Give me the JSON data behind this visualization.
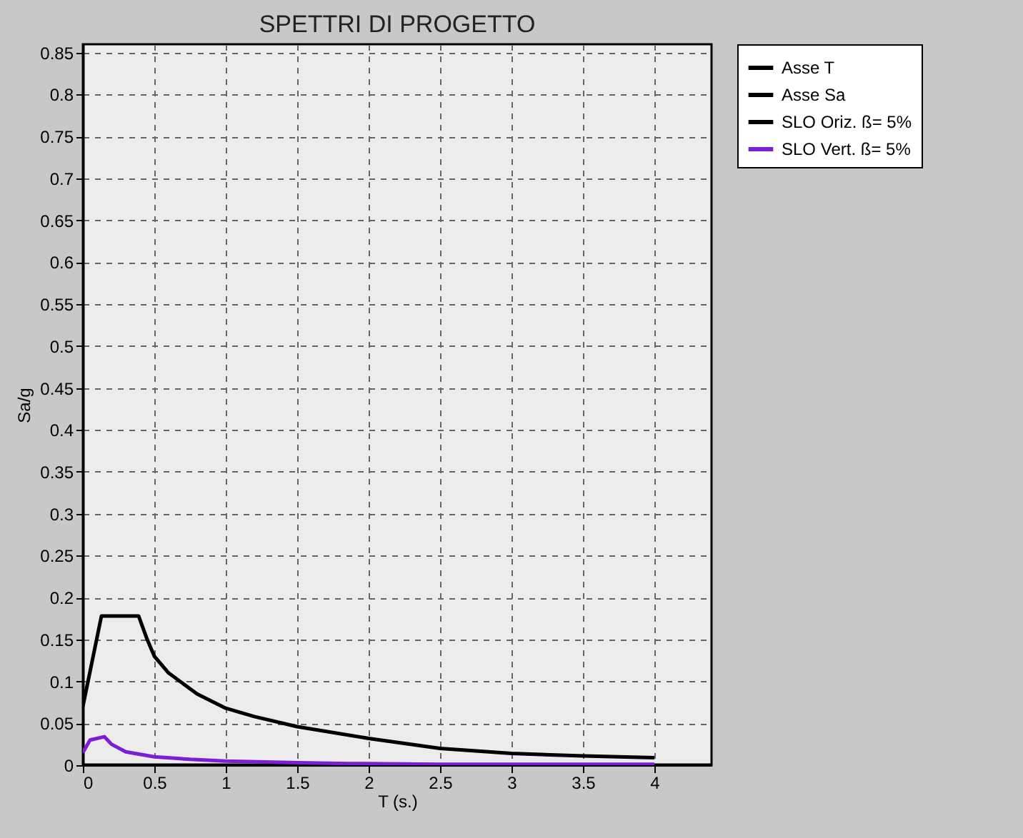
{
  "chart_data": {
    "type": "line",
    "title": "SPETTRI DI PROGETTO",
    "xlabel": "T (s.)",
    "ylabel": "Sa/g",
    "xlim": [
      0,
      4.4
    ],
    "ylim": [
      0,
      0.86
    ],
    "xticks": [
      0,
      0.5,
      1,
      1.5,
      2,
      2.5,
      3,
      3.5,
      4
    ],
    "yticks": [
      0,
      0.05,
      0.1,
      0.15,
      0.2,
      0.25,
      0.3,
      0.35,
      0.4,
      0.45,
      0.5,
      0.55,
      0.6,
      0.65,
      0.7,
      0.75,
      0.8,
      0.85
    ],
    "grid": true,
    "legend": "top right",
    "line_style": "solid",
    "marker": "none",
    "series": [
      {
        "name": "Asse T",
        "color": "#000000",
        "x": [
          0,
          4.4
        ],
        "values": [
          0,
          0
        ]
      },
      {
        "name": "Asse Sa",
        "color": "#000000",
        "x": [
          0,
          0
        ],
        "values": [
          0,
          0.86
        ]
      },
      {
        "name": "SLO Oriz. ß= 5%",
        "color": "#000000",
        "x": [
          0,
          0.13,
          0.39,
          0.45,
          0.5,
          0.6,
          0.8,
          1.0,
          1.2,
          1.5,
          2.0,
          2.5,
          3.0,
          3.5,
          4.0
        ],
        "values": [
          0.07,
          0.178,
          0.178,
          0.15,
          0.13,
          0.11,
          0.085,
          0.068,
          0.058,
          0.046,
          0.032,
          0.02,
          0.014,
          0.011,
          0.009
        ]
      },
      {
        "name": "SLO Vert. ß= 5%",
        "color": "#7b1fd6",
        "x": [
          0,
          0.05,
          0.15,
          0.2,
          0.3,
          0.5,
          0.75,
          1.0,
          1.5,
          1.85,
          2.5,
          4.0
        ],
        "values": [
          0.015,
          0.03,
          0.034,
          0.025,
          0.016,
          0.01,
          0.007,
          0.005,
          0.003,
          0.002,
          0.001,
          0.001
        ]
      }
    ]
  }
}
